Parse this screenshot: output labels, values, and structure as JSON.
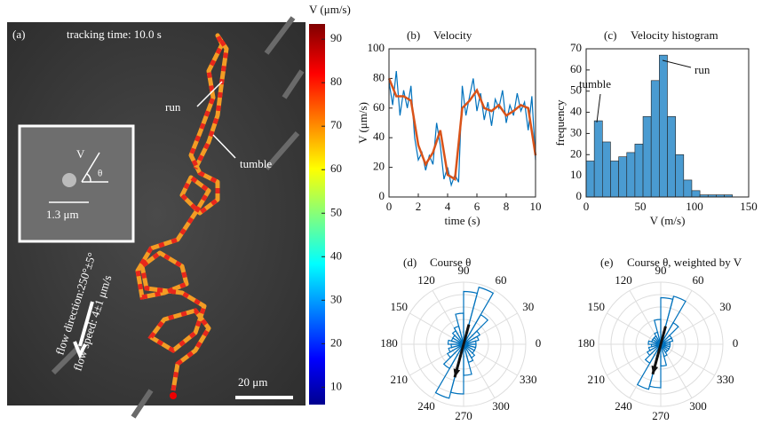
{
  "image_panel": {
    "label": "(a)",
    "tracking_time": "tracking time: 10.0 s",
    "run": "run",
    "tumble": "tumble",
    "inset_v": "V",
    "inset_theta": "θ",
    "inset_scale": "1.3 μm",
    "flow_direction": "flow direction:250°±5°",
    "flow_speed": "flow speed: 4±1 μm/s",
    "scale_bar": "20 μm"
  },
  "chart_data": [
    {
      "type": "colorbar",
      "title": "V (μm/s)",
      "ylim": [
        6,
        93.5
      ],
      "yticks": [
        10,
        20,
        30,
        40,
        50,
        60,
        70,
        80,
        90
      ]
    },
    {
      "type": "line",
      "panel_label": "(b)",
      "title": "Velocity",
      "x_label": "time (s)",
      "y_label": "V (μm/s)",
      "xlim": [
        0,
        10
      ],
      "xticks": [
        0,
        2,
        4,
        6,
        8,
        10
      ],
      "ylim": [
        0,
        100
      ],
      "yticks": [
        0,
        20,
        40,
        60,
        80,
        100
      ],
      "series": [
        {
          "color": "#0072bd",
          "x": [
            0,
            0.25,
            0.5,
            0.75,
            1,
            1.25,
            1.5,
            1.75,
            2,
            2.25,
            2.5,
            2.75,
            3,
            3.25,
            3.5,
            3.75,
            4,
            4.25,
            4.5,
            4.75,
            5,
            5.25,
            5.5,
            5.75,
            6,
            6.25,
            6.5,
            6.75,
            7,
            7.25,
            7.5,
            7.75,
            8,
            8.25,
            8.5,
            8.75,
            9,
            9.25,
            9.5,
            9.75,
            10
          ],
          "values": [
            78,
            62,
            85,
            55,
            72,
            60,
            75,
            40,
            25,
            30,
            18,
            28,
            22,
            50,
            35,
            12,
            20,
            8,
            15,
            10,
            75,
            55,
            68,
            80,
            58,
            70,
            52,
            64,
            48,
            66,
            60,
            72,
            50,
            62,
            55,
            70,
            58,
            64,
            45,
            68,
            25
          ]
        },
        {
          "color": "#d95319",
          "x": [
            0,
            0.5,
            1,
            1.5,
            2,
            2.5,
            3,
            3.5,
            4,
            4.5,
            5,
            5.5,
            6,
            6.5,
            7,
            7.5,
            8,
            8.5,
            9,
            9.5,
            10
          ],
          "values": [
            80,
            68,
            68,
            65,
            35,
            22,
            30,
            45,
            15,
            12,
            60,
            65,
            72,
            60,
            58,
            62,
            55,
            58,
            62,
            60,
            28
          ]
        }
      ]
    },
    {
      "type": "histogram",
      "panel_label": "(c)",
      "title": "Velocity histogram",
      "x_label": "V (m/s)",
      "y_label": "frequency",
      "color": "#4a9bd1",
      "bins": [
        0,
        7.5,
        15,
        22.5,
        30,
        37.5,
        45,
        52.5,
        60,
        67.5,
        75,
        82.5,
        90,
        97.5,
        105,
        112.5,
        120,
        127.5,
        135,
        142.5,
        150
      ],
      "values": [
        17,
        36,
        26,
        17,
        19,
        21,
        25,
        38,
        55,
        67,
        38,
        20,
        8,
        3,
        1,
        1,
        1,
        1,
        0,
        0
      ],
      "xlim": [
        0,
        150
      ],
      "xticks": [
        0,
        50,
        100,
        150
      ],
      "ylim": [
        0,
        70
      ],
      "yticks": [
        0,
        10,
        20,
        30,
        40,
        50,
        60,
        70
      ],
      "annotations": [
        "tumble",
        "run"
      ]
    },
    {
      "type": "polar",
      "panel_label": "(d)",
      "title": "Course θ",
      "color": "#0072bd",
      "rlim": [
        0,
        1
      ],
      "theta_bins": [
        0,
        15,
        30,
        45,
        60,
        75,
        90,
        105,
        120,
        135,
        150,
        165,
        180,
        195,
        210,
        225,
        240,
        255,
        270,
        285,
        300,
        315,
        330,
        345
      ],
      "values": [
        0.2,
        0.25,
        0.3,
        0.55,
        0.95,
        0.85,
        0.5,
        0.3,
        0.25,
        0.2,
        0.2,
        0.25,
        0.2,
        0.25,
        0.3,
        0.45,
        0.9,
        0.8,
        0.5,
        0.3,
        0.25,
        0.2,
        0.2,
        0.2
      ],
      "theta_ticks": [
        0,
        30,
        60,
        90,
        120,
        150,
        180,
        210,
        240,
        270,
        300,
        330
      ],
      "arrow_angle": 255,
      "arrow_length": 0.55
    },
    {
      "type": "polar",
      "panel_label": "(e)",
      "title": "Course θ, weighted by V",
      "color": "#0072bd",
      "rlim": [
        0,
        1
      ],
      "theta_bins": [
        0,
        15,
        30,
        45,
        60,
        75,
        90,
        105,
        120,
        135,
        150,
        165,
        180,
        195,
        210,
        225,
        240,
        255,
        270,
        285,
        300,
        315,
        330,
        345
      ],
      "values": [
        0.15,
        0.2,
        0.2,
        0.4,
        0.8,
        0.75,
        0.4,
        0.2,
        0.15,
        0.15,
        0.15,
        0.2,
        0.15,
        0.2,
        0.25,
        0.35,
        0.75,
        0.7,
        0.35,
        0.2,
        0.15,
        0.15,
        0.15,
        0.15
      ],
      "theta_ticks": [
        0,
        30,
        60,
        90,
        120,
        150,
        180,
        210,
        240,
        270,
        300,
        330
      ],
      "arrow_angle": 255,
      "arrow_length": 0.5
    }
  ]
}
